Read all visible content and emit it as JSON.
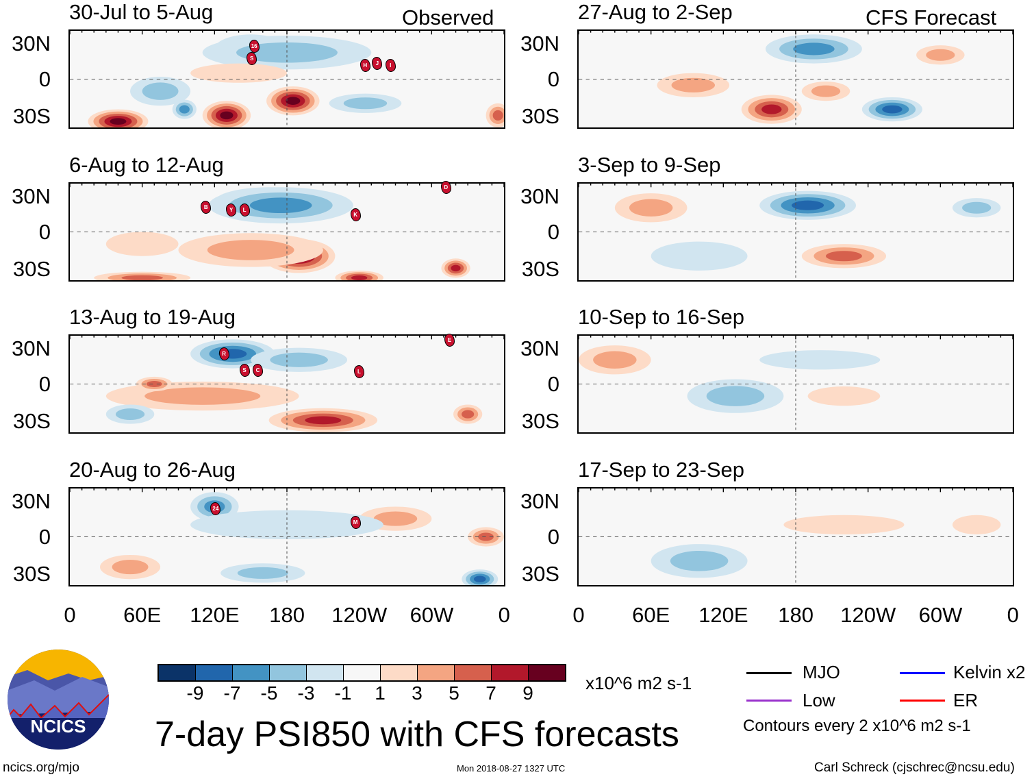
{
  "headers": {
    "left": "Observed",
    "right": "CFS Forecast"
  },
  "lat_labels": [
    "30N",
    "0",
    "30S"
  ],
  "lon_labels": [
    "0",
    "60E",
    "120E",
    "180",
    "120W",
    "60W",
    "0"
  ],
  "palette": [
    "#0b3368",
    "#2166ac",
    "#4393c3",
    "#92c5de",
    "#d1e5f0",
    "#f7f7f7",
    "#fddbc7",
    "#f4a582",
    "#d6604d",
    "#b2182b",
    "#67001f"
  ],
  "panels": [
    {
      "title": "30-Jul to 5-Aug",
      "features": [
        [
          150,
          25,
          30,
          12,
          -7
        ],
        [
          180,
          22,
          70,
          14,
          -3
        ],
        [
          40,
          -35,
          25,
          10,
          9
        ],
        [
          130,
          -30,
          20,
          12,
          9
        ],
        [
          185,
          -18,
          22,
          12,
          9
        ],
        [
          75,
          -10,
          25,
          12,
          -3
        ],
        [
          95,
          -25,
          10,
          8,
          -5
        ],
        [
          245,
          -20,
          30,
          8,
          -3
        ],
        [
          355,
          -30,
          10,
          10,
          5
        ],
        [
          140,
          5,
          40,
          8,
          1
        ]
      ],
      "storms": [
        [
          "16",
          152,
          28
        ],
        [
          "S",
          150,
          18
        ],
        [
          "H",
          244,
          12
        ],
        [
          "J",
          254,
          14
        ],
        [
          "I",
          265,
          12
        ]
      ]
    },
    {
      "title": "6-Aug to 12-Aug",
      "features": [
        [
          165,
          25,
          45,
          12,
          -9
        ],
        [
          175,
          22,
          60,
          15,
          -5
        ],
        [
          190,
          -20,
          30,
          14,
          9
        ],
        [
          150,
          -15,
          60,
          14,
          3
        ],
        [
          320,
          -30,
          12,
          8,
          7
        ],
        [
          240,
          -38,
          20,
          6,
          7
        ],
        [
          60,
          -38,
          40,
          5,
          5
        ],
        [
          60,
          -10,
          30,
          10,
          1
        ]
      ],
      "storms": [
        [
          "B",
          112,
          21
        ],
        [
          "Y",
          133,
          19
        ],
        [
          "L",
          144,
          19
        ],
        [
          "K",
          236,
          15
        ],
        [
          "D",
          311,
          38
        ]
      ]
    },
    {
      "title": "13-Aug to 19-Aug",
      "features": [
        [
          135,
          25,
          35,
          12,
          -7
        ],
        [
          110,
          -10,
          80,
          12,
          3
        ],
        [
          70,
          0,
          15,
          6,
          5
        ],
        [
          210,
          -30,
          45,
          10,
          7
        ],
        [
          330,
          -25,
          12,
          8,
          5
        ],
        [
          50,
          -25,
          20,
          8,
          -3
        ],
        [
          190,
          20,
          40,
          10,
          -3
        ]
      ],
      "storms": [
        [
          "R",
          127,
          26
        ],
        [
          "S",
          144,
          12
        ],
        [
          "C",
          155,
          12
        ],
        [
          "L",
          239,
          11
        ],
        [
          "E",
          314,
          37
        ]
      ]
    },
    {
      "title": "20-Aug to 26-Aug",
      "features": [
        [
          120,
          25,
          20,
          12,
          -5
        ],
        [
          50,
          -25,
          25,
          10,
          3
        ],
        [
          270,
          15,
          30,
          10,
          3
        ],
        [
          340,
          -35,
          15,
          8,
          -7
        ],
        [
          345,
          0,
          15,
          8,
          5
        ],
        [
          180,
          10,
          80,
          12,
          -1
        ],
        [
          160,
          -30,
          35,
          8,
          -3
        ]
      ],
      "storms": [
        [
          "24",
          120,
          24
        ],
        [
          "M",
          236,
          13
        ]
      ]
    },
    {
      "title": "27-Aug to 2-Sep",
      "features": [
        [
          195,
          25,
          40,
          12,
          -5
        ],
        [
          160,
          -25,
          25,
          12,
          7
        ],
        [
          260,
          -25,
          25,
          10,
          -7
        ],
        [
          95,
          -5,
          30,
          10,
          3
        ],
        [
          205,
          -10,
          20,
          8,
          3
        ],
        [
          300,
          20,
          20,
          8,
          3
        ]
      ],
      "storms": []
    },
    {
      "title": "3-Sep to 9-Sep",
      "features": [
        [
          190,
          22,
          40,
          12,
          -7
        ],
        [
          220,
          -20,
          35,
          10,
          5
        ],
        [
          60,
          20,
          30,
          12,
          3
        ],
        [
          330,
          20,
          20,
          8,
          -3
        ],
        [
          100,
          -20,
          40,
          12,
          -1
        ]
      ],
      "storms": []
    },
    {
      "title": "10-Sep to 16-Sep",
      "features": [
        [
          30,
          20,
          30,
          12,
          3
        ],
        [
          130,
          -10,
          40,
          14,
          -3
        ],
        [
          220,
          -10,
          30,
          8,
          1
        ],
        [
          200,
          20,
          50,
          8,
          -1
        ]
      ],
      "storms": []
    },
    {
      "title": "17-Sep to 23-Sep",
      "features": [
        [
          100,
          -20,
          40,
          14,
          -3
        ],
        [
          220,
          10,
          50,
          8,
          1
        ],
        [
          330,
          10,
          20,
          8,
          1
        ]
      ],
      "storms": []
    }
  ],
  "colorbar": {
    "labels": [
      "-9",
      "-7",
      "-5",
      "-3",
      "-1",
      "1",
      "3",
      "5",
      "7",
      "9"
    ],
    "units": "x10^6 m2 s-1"
  },
  "title": "7-day PSI850 with CFS forecasts",
  "legend": {
    "mjo": "MJO",
    "kelvin": "Kelvin x2",
    "low": "Low",
    "er": "ER",
    "contours": "Contours every 2 x10^6 m2 s-1",
    "colors": {
      "mjo": "#000000",
      "kelvin": "#0000ff",
      "low": "#9932cc",
      "er": "#ff0000"
    }
  },
  "logo": {
    "text": "NCICS"
  },
  "footer": {
    "url": "ncics.org/mjo",
    "timestamp": "Mon 2018-08-27 1327 UTC",
    "author": "Carl Schreck (cjschrec@ncsu.edu)"
  }
}
